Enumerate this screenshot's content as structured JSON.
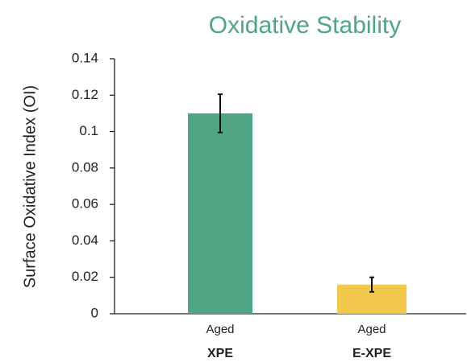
{
  "chart_data": {
    "type": "bar",
    "title": "Oxidative Stability",
    "ylabel": "Surface Oxidative Index (OI)",
    "categories": [
      "XPE",
      "E-XPE"
    ],
    "category_sublabels": [
      "Aged",
      "Aged"
    ],
    "values": [
      0.11,
      0.016
    ],
    "errors": [
      0.0105,
      0.004
    ],
    "colors": [
      "#4fa584",
      "#f2c94c"
    ],
    "title_color": "#4fa584",
    "ylim": [
      0,
      0.14
    ],
    "yticks": [
      0,
      0.02,
      0.04,
      0.06,
      0.08,
      0.1,
      0.12,
      0.14
    ],
    "grid": false
  }
}
